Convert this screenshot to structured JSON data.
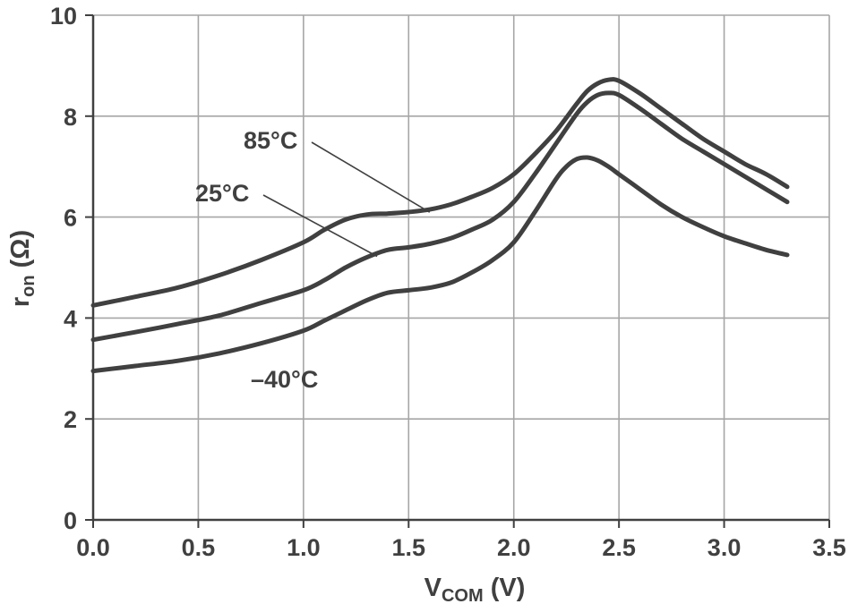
{
  "chart_data": {
    "type": "line",
    "title": "",
    "xlabel": {
      "main": "V",
      "sub": "COM",
      "unit": " (V)"
    },
    "ylabel": {
      "main": "r",
      "sub": "on",
      "unit": "  (Ω)"
    },
    "xlim": [
      0,
      3.5
    ],
    "ylim": [
      0,
      10
    ],
    "x_ticks": [
      0.0,
      0.5,
      1.0,
      1.5,
      2.0,
      2.5,
      3.0,
      3.5
    ],
    "x_tick_labels": [
      "0.0",
      "0.5",
      "1.0",
      "1.5",
      "2.0",
      "2.5",
      "3.0",
      "3.5"
    ],
    "y_ticks": [
      0,
      2,
      4,
      6,
      8,
      10
    ],
    "y_tick_labels": [
      "0",
      "2",
      "4",
      "6",
      "8",
      "10"
    ],
    "grid": true,
    "line_color": "#404040",
    "grid_color": "#a6a6a6",
    "axis_color": "#404040",
    "series": [
      {
        "name": "85°C",
        "x": [
          0.0,
          0.2,
          0.4,
          0.6,
          0.8,
          1.0,
          1.1,
          1.2,
          1.3,
          1.4,
          1.5,
          1.6,
          1.7,
          1.8,
          1.9,
          2.0,
          2.1,
          2.2,
          2.3,
          2.35,
          2.4,
          2.45,
          2.5,
          2.6,
          2.7,
          2.8,
          2.9,
          3.0,
          3.1,
          3.2,
          3.3
        ],
        "y": [
          4.25,
          4.42,
          4.6,
          4.85,
          5.15,
          5.5,
          5.75,
          5.95,
          6.05,
          6.07,
          6.1,
          6.15,
          6.25,
          6.4,
          6.58,
          6.85,
          7.25,
          7.7,
          8.25,
          8.5,
          8.65,
          8.72,
          8.7,
          8.45,
          8.15,
          7.85,
          7.55,
          7.3,
          7.05,
          6.85,
          6.6
        ]
      },
      {
        "name": "25°C",
        "x": [
          0.0,
          0.2,
          0.4,
          0.6,
          0.8,
          1.0,
          1.1,
          1.2,
          1.3,
          1.4,
          1.5,
          1.6,
          1.7,
          1.8,
          1.9,
          2.0,
          2.1,
          2.2,
          2.3,
          2.35,
          2.4,
          2.45,
          2.5,
          2.6,
          2.7,
          2.8,
          2.9,
          3.0,
          3.1,
          3.2,
          3.3
        ],
        "y": [
          3.57,
          3.72,
          3.88,
          4.05,
          4.3,
          4.55,
          4.75,
          5.0,
          5.2,
          5.35,
          5.4,
          5.47,
          5.58,
          5.75,
          5.95,
          6.3,
          6.85,
          7.45,
          8.05,
          8.28,
          8.42,
          8.46,
          8.42,
          8.15,
          7.85,
          7.55,
          7.3,
          7.05,
          6.8,
          6.55,
          6.3
        ]
      },
      {
        "name": "–40°C",
        "x": [
          0.0,
          0.2,
          0.4,
          0.6,
          0.8,
          1.0,
          1.1,
          1.2,
          1.3,
          1.4,
          1.5,
          1.6,
          1.7,
          1.8,
          1.9,
          2.0,
          2.1,
          2.2,
          2.25,
          2.3,
          2.35,
          2.4,
          2.45,
          2.5,
          2.6,
          2.7,
          2.8,
          2.9,
          3.0,
          3.1,
          3.2,
          3.3
        ],
        "y": [
          2.95,
          3.05,
          3.15,
          3.3,
          3.5,
          3.75,
          3.95,
          4.15,
          4.35,
          4.5,
          4.55,
          4.6,
          4.7,
          4.9,
          5.15,
          5.5,
          6.1,
          6.75,
          7.0,
          7.15,
          7.18,
          7.12,
          7.0,
          6.85,
          6.55,
          6.25,
          6.0,
          5.8,
          5.62,
          5.48,
          5.35,
          5.25
        ]
      }
    ],
    "annotations": [
      {
        "text": "85°C",
        "target_series": 0,
        "target_x": 1.6
      },
      {
        "text": "25°C",
        "target_series": 1,
        "target_x": 1.35
      },
      {
        "text": "–40°C",
        "target_series": 2
      }
    ]
  }
}
